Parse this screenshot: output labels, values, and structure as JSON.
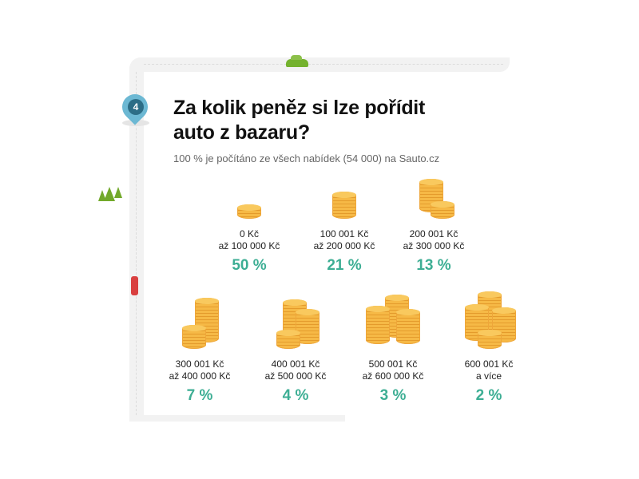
{
  "step_number": "4",
  "title_line1": "Za kolik peněz si lze pořídit",
  "title_line2": "auto z bazaru?",
  "subtitle": "100 % je počítáno ze všech nabídek (54 000) na Sauto.cz",
  "colors": {
    "accent": "#3dae94",
    "coin": "#f6b946",
    "pin": "#6cb8d3"
  },
  "chart_data": {
    "type": "bar",
    "title": "Za kolik peněz si lze pořídit auto z bazaru?",
    "categories": [
      {
        "line1": "0 Kč",
        "line2": "až 100 000 Kč"
      },
      {
        "line1": "100 001 Kč",
        "line2": "až 200 000 Kč"
      },
      {
        "line1": "200 001 Kč",
        "line2": "až 300 000 Kč"
      },
      {
        "line1": "300 001 Kč",
        "line2": "až 400 000 Kč"
      },
      {
        "line1": "400 001 Kč",
        "line2": "až 500 000 Kč"
      },
      {
        "line1": "500 001 Kč",
        "line2": "až 600 000 Kč"
      },
      {
        "line1": "600 001 Kč",
        "line2": "a více"
      }
    ],
    "values": [
      50,
      21,
      13,
      7,
      4,
      3,
      2
    ],
    "labels": [
      "50 %",
      "21 %",
      "13 %",
      "7 %",
      "4 %",
      "3 %",
      "2 %"
    ],
    "unit": "%"
  }
}
